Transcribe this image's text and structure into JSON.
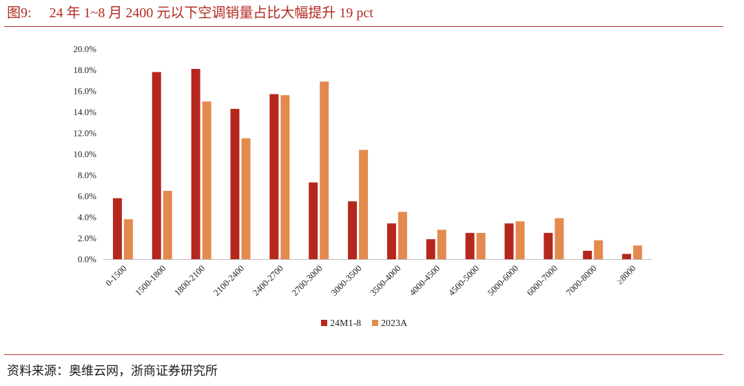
{
  "header": {
    "figure_number": "图9:",
    "title": "24 年 1~8 月 2400 元以下空调销量占比大幅提升 19 pct"
  },
  "footer": {
    "source": "资料来源：奥维云网，浙商证券研究所"
  },
  "chart_data": {
    "type": "bar",
    "categories": [
      "0-1500",
      "1500-1800",
      "1800-2100",
      "2100-2400",
      "2400-2700",
      "2700-3000",
      "3000-3500",
      "3500-4000",
      "4000-4500",
      "4500-5000",
      "5000-6000",
      "6000-7000",
      "7000-8000",
      "≥8000"
    ],
    "series": [
      {
        "name": "24M1-8",
        "color": "#b5271e",
        "values": [
          5.8,
          17.8,
          18.1,
          14.3,
          15.7,
          7.3,
          5.5,
          3.4,
          1.9,
          2.5,
          3.4,
          2.5,
          0.8,
          0.5
        ]
      },
      {
        "name": "2023A",
        "color": "#e48a4f",
        "values": [
          3.8,
          6.5,
          15.0,
          11.5,
          15.6,
          16.9,
          10.4,
          4.5,
          2.8,
          2.5,
          3.6,
          3.9,
          1.8,
          1.3
        ]
      }
    ],
    "ylim": [
      0,
      20
    ],
    "yticks": [
      "0.0%",
      "2.0%",
      "4.0%",
      "6.0%",
      "8.0%",
      "10.0%",
      "12.0%",
      "14.0%",
      "16.0%",
      "18.0%",
      "20.0%"
    ],
    "ytick_values": [
      0,
      2,
      4,
      6,
      8,
      10,
      12,
      14,
      16,
      18,
      20
    ],
    "grid": false,
    "legend": "bottom-center"
  }
}
